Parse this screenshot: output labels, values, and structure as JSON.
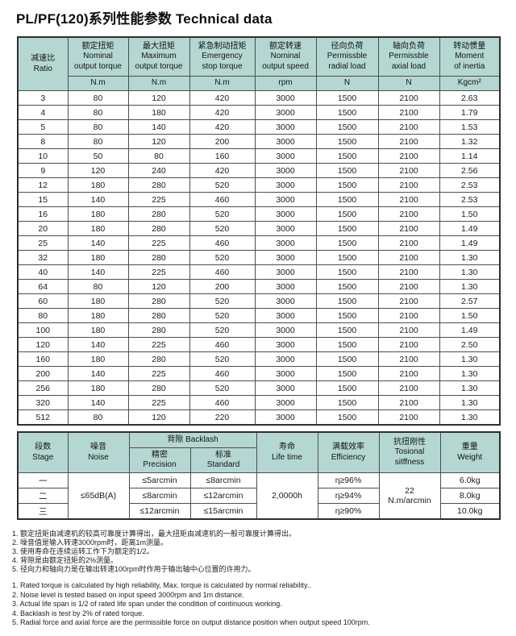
{
  "page": {
    "title": "PL/PF(120)系列性能参数 Technical data"
  },
  "main_table": {
    "ratio_header": {
      "zh": "减速比",
      "en": "Ratio"
    },
    "columns": [
      {
        "zh": "额定扭矩",
        "en1": "Nominal",
        "en2": "output torque",
        "unit": "N.m"
      },
      {
        "zh": "最大扭矩",
        "en1": "Maximum",
        "en2": "output torque",
        "unit": "N.m"
      },
      {
        "zh": "紧急制动扭矩",
        "en1": "Emergency",
        "en2": "stop torque",
        "unit": "N.m"
      },
      {
        "zh": "额定转速",
        "en1": "Nominal",
        "en2": "output speed",
        "unit": "rpm"
      },
      {
        "zh": "径向负荷",
        "en1": "Permissble",
        "en2": "radial load",
        "unit": "N"
      },
      {
        "zh": "轴向负荷",
        "en1": "Permissble",
        "en2": "axial load",
        "unit": "N"
      },
      {
        "zh": "转动惯量",
        "en1": "Moment",
        "en2": "of inertia",
        "unit": "Kgcm²"
      }
    ],
    "rows": [
      [
        "3",
        "80",
        "120",
        "420",
        "3000",
        "1500",
        "2100",
        "2.63"
      ],
      [
        "4",
        "80",
        "180",
        "420",
        "3000",
        "1500",
        "2100",
        "1.79"
      ],
      [
        "5",
        "80",
        "140",
        "420",
        "3000",
        "1500",
        "2100",
        "1.53"
      ],
      [
        "8",
        "80",
        "120",
        "200",
        "3000",
        "1500",
        "2100",
        "1.32"
      ],
      [
        "10",
        "50",
        "80",
        "160",
        "3000",
        "1500",
        "2100",
        "1.14"
      ],
      [
        "9",
        "120",
        "240",
        "420",
        "3000",
        "1500",
        "2100",
        "2.56"
      ],
      [
        "12",
        "180",
        "280",
        "520",
        "3000",
        "1500",
        "2100",
        "2.53"
      ],
      [
        "15",
        "140",
        "225",
        "460",
        "3000",
        "1500",
        "2100",
        "2.53"
      ],
      [
        "16",
        "180",
        "280",
        "520",
        "3000",
        "1500",
        "2100",
        "1.50"
      ],
      [
        "20",
        "180",
        "280",
        "520",
        "3000",
        "1500",
        "2100",
        "1.49"
      ],
      [
        "25",
        "140",
        "225",
        "460",
        "3000",
        "1500",
        "2100",
        "1.49"
      ],
      [
        "32",
        "180",
        "280",
        "520",
        "3000",
        "1500",
        "2100",
        "1.30"
      ],
      [
        "40",
        "140",
        "225",
        "460",
        "3000",
        "1500",
        "2100",
        "1.30"
      ],
      [
        "64",
        "80",
        "120",
        "200",
        "3000",
        "1500",
        "2100",
        "1.30"
      ],
      [
        "60",
        "180",
        "280",
        "520",
        "3000",
        "1500",
        "2100",
        "2.57"
      ],
      [
        "80",
        "180",
        "280",
        "520",
        "3000",
        "1500",
        "2100",
        "1.50"
      ],
      [
        "100",
        "180",
        "280",
        "520",
        "3000",
        "1500",
        "2100",
        "1.49"
      ],
      [
        "120",
        "140",
        "225",
        "460",
        "3000",
        "1500",
        "2100",
        "2.50"
      ],
      [
        "160",
        "180",
        "280",
        "520",
        "3000",
        "1500",
        "2100",
        "1.30"
      ],
      [
        "200",
        "140",
        "225",
        "460",
        "3000",
        "1500",
        "2100",
        "1.30"
      ],
      [
        "256",
        "180",
        "280",
        "520",
        "3000",
        "1500",
        "2100",
        "1.30"
      ],
      [
        "320",
        "140",
        "225",
        "460",
        "3000",
        "1500",
        "2100",
        "1.30"
      ],
      [
        "512",
        "80",
        "120",
        "220",
        "3000",
        "1500",
        "2100",
        "1.30"
      ]
    ]
  },
  "spec_table": {
    "headers": {
      "stage": {
        "zh": "段数",
        "en": "Stage"
      },
      "noise": {
        "zh": "噪音",
        "en": "Noise"
      },
      "backlash": {
        "zh": "背隙",
        "en": "Backlash"
      },
      "precision": {
        "zh": "精密",
        "en": "Precision"
      },
      "standard": {
        "zh": "标准",
        "en": "Standard"
      },
      "life": {
        "zh": "寿命",
        "en": "Life time"
      },
      "efficiency": {
        "zh": "满载效率",
        "en": "Efficiency"
      },
      "stiffness": {
        "zh": "抗扭刚性",
        "en1": "Tosional",
        "en2": "sitffness"
      },
      "weight": {
        "zh": "重量",
        "en": "Weight"
      }
    },
    "noise_value": "≤65dB(A)",
    "life_value": "2,0000h",
    "stiffness_value_line1": "22",
    "stiffness_value_line2": "N.m/arcmin",
    "rows": [
      {
        "stage": "一",
        "precision": "≤5arcmin",
        "standard": "≤8arcmin",
        "efficiency": "η≥96%",
        "weight": "6.0kg"
      },
      {
        "stage": "二",
        "precision": "≤8arcmin",
        "standard": "≤12arcmin",
        "efficiency": "η≥94%",
        "weight": "8.0kg"
      },
      {
        "stage": "三",
        "precision": "≤12arcmin",
        "standard": "≤15arcmin",
        "efficiency": "η≥90%",
        "weight": "10.0kg"
      }
    ]
  },
  "footnotes": {
    "zh": [
      "1. 额定扭矩由减速机的较高可靠度计算得出，最大扭矩由减速机的一般可靠度计算得出。",
      "2. 噪音值是输入转速3000rpm时，距离1m测量。",
      "3. 使用寿命在连续运转工作下为额定的1/2。",
      "4. 背隙是由额定扭矩的2%测量。",
      "5. 径向力和轴向力是在输出转速100rpm时作用于输出轴中心位置的许用力。"
    ],
    "en": [
      "1. Rated torque is calculated by high reliability, Max. torque is calculated by normal reliability..",
      "2. Noise level is tested based on input speed 3000rpm and 1m distance.",
      "3. Actual life span is 1/2 of rated life span under the condition of continuous working.",
      "4. Backlash is test by 2% of rated torque.",
      "5. Radial force and axial force are the permissible force on output distance position when output speed 100rpm."
    ]
  },
  "colors": {
    "header_bg": "#b4d7d2",
    "border": "#4e4e4e",
    "text": "#1c1c1c"
  }
}
